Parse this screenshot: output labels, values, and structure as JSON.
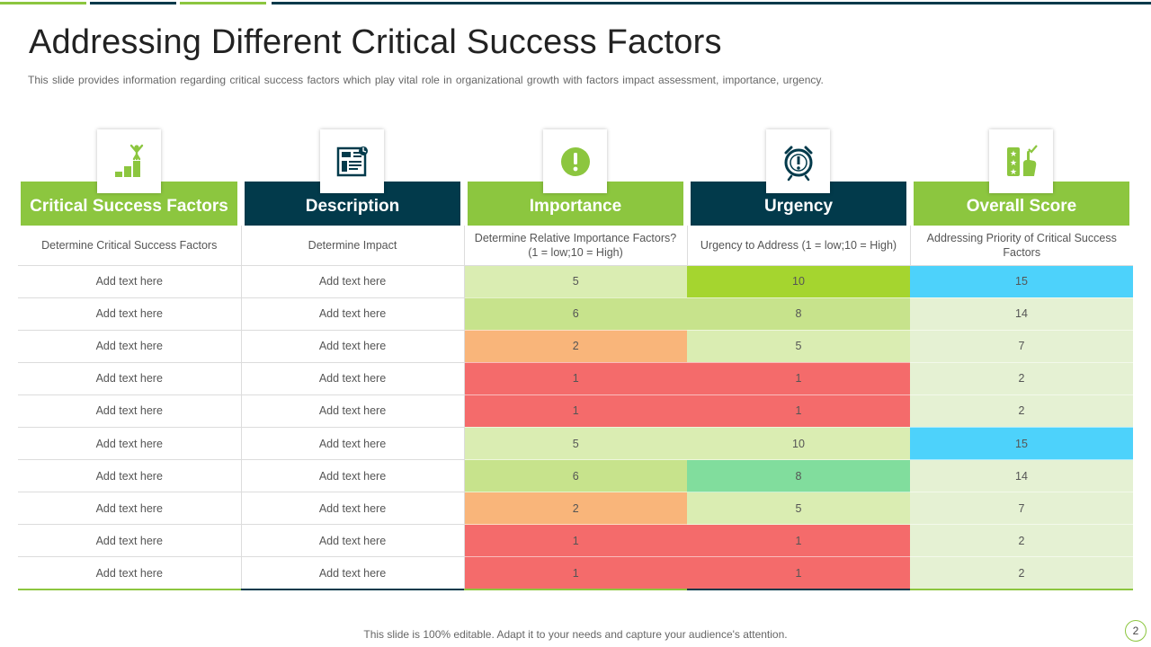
{
  "slide": {
    "title": "Addressing Different Critical Success Factors",
    "subtitle": "This slide provides information regarding critical success factors which play vital role in organizational growth with factors impact assessment, importance, urgency.",
    "footer": "This slide is 100% editable. Adapt it to your needs and capture your audience's attention.",
    "page_number": "2"
  },
  "colors": {
    "green": "#8cc63f",
    "navy": "#023a4b",
    "sky": "#4dd2fb",
    "red": "#f46b6b",
    "orange": "#f9b57a",
    "mint": "#81dd9d",
    "green_dark": "#a5d52f",
    "green_mid": "#c7e38c",
    "green_light": "#daedb2",
    "green_pale": "#e5f1d3"
  },
  "columns": [
    {
      "header": "Critical Success Factors",
      "subheader": "Determine Critical Success Factors",
      "icon": "growth-steps-icon",
      "color": "#8cc63f"
    },
    {
      "header": "Description",
      "subheader": "Determine Impact",
      "icon": "report-document-icon",
      "color": "#023a4b"
    },
    {
      "header": "Importance",
      "subheader": "Determine Relative Importance Factors? (1 = low;10 = High)",
      "icon": "exclamation-icon",
      "color": "#8cc63f"
    },
    {
      "header": "Urgency",
      "subheader": "Urgency to Address (1 = low;10 = High)",
      "icon": "alarm-clock-icon",
      "color": "#023a4b"
    },
    {
      "header": "Overall Score",
      "subheader": "Addressing Priority of Critical Success Factors",
      "icon": "rating-hand-icon",
      "color": "#8cc63f"
    }
  ],
  "rows": [
    {
      "factor": "Add text here",
      "description": "Add text here",
      "importance": 5,
      "urgency": 10,
      "score": 15
    },
    {
      "factor": "Add text here",
      "description": "Add text here",
      "importance": 6,
      "urgency": 8,
      "score": 14
    },
    {
      "factor": "Add text here",
      "description": "Add text here",
      "importance": 2,
      "urgency": 5,
      "score": 7
    },
    {
      "factor": "Add text here",
      "description": "Add text here",
      "importance": 1,
      "urgency": 1,
      "score": 2
    },
    {
      "factor": "Add text here",
      "description": "Add text here",
      "importance": 1,
      "urgency": 1,
      "score": 2
    },
    {
      "factor": "Add text here",
      "description": "Add text here",
      "importance": 5,
      "urgency": 10,
      "score": 15
    },
    {
      "factor": "Add text here",
      "description": "Add text here",
      "importance": 6,
      "urgency": 8,
      "score": 14
    },
    {
      "factor": "Add text here",
      "description": "Add text here",
      "importance": 2,
      "urgency": 5,
      "score": 7
    },
    {
      "factor": "Add text here",
      "description": "Add text here",
      "importance": 1,
      "urgency": 1,
      "score": 2
    },
    {
      "factor": "Add text here",
      "description": "Add text here",
      "importance": 1,
      "urgency": 1,
      "score": 2
    }
  ],
  "cell_colors": {
    "importance": [
      "#daedb2",
      "#c7e38c",
      "#f9b57a",
      "#f46b6b",
      "#f46b6b",
      "#daedb2",
      "#c7e38c",
      "#f9b57a",
      "#f46b6b",
      "#f46b6b"
    ],
    "urgency": [
      "#a5d52f",
      "#c7e38c",
      "#daedb2",
      "#f46b6b",
      "#f46b6b",
      "#daedb2",
      "#81dd9d",
      "#daedb2",
      "#f46b6b",
      "#f46b6b"
    ],
    "score": [
      "#4dd2fb",
      "#e5f1d3",
      "#e5f1d3",
      "#e5f1d3",
      "#e5f1d3",
      "#4dd2fb",
      "#e5f1d3",
      "#e5f1d3",
      "#e5f1d3",
      "#e5f1d3"
    ]
  }
}
